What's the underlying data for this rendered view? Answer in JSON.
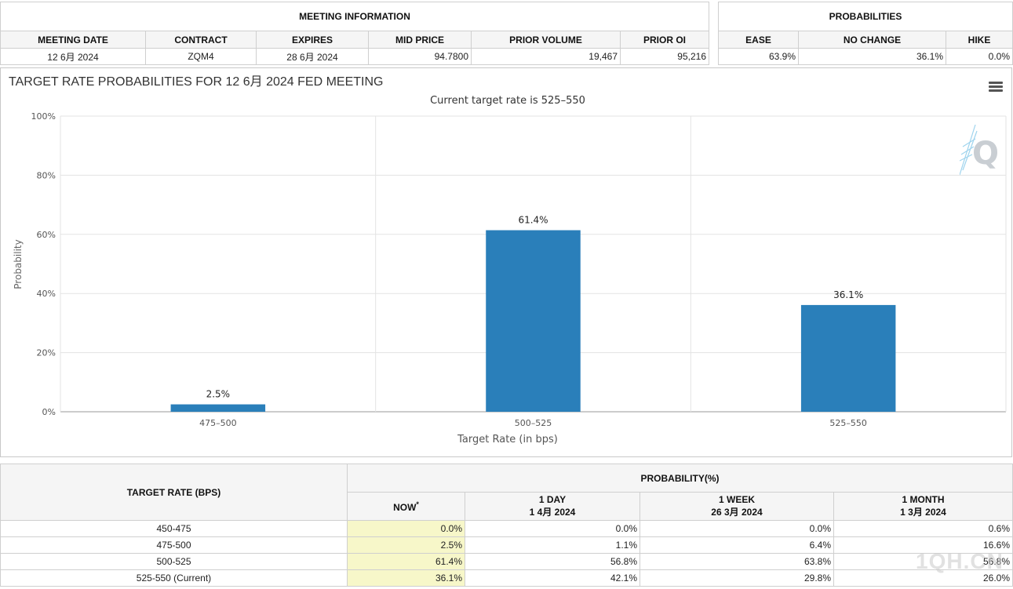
{
  "meeting_info": {
    "title": "MEETING INFORMATION",
    "headers": [
      "MEETING DATE",
      "CONTRACT",
      "EXPIRES",
      "MID PRICE",
      "PRIOR VOLUME",
      "PRIOR OI"
    ],
    "values": [
      "12 6月 2024",
      "ZQM4",
      "28 6月 2024",
      "94.7800",
      "19,467",
      "95,216"
    ]
  },
  "probabilities": {
    "title": "PROBABILITIES",
    "headers": [
      "EASE",
      "NO CHANGE",
      "HIKE"
    ],
    "values": [
      "63.9%",
      "36.1%",
      "0.0%"
    ]
  },
  "chart_data": {
    "type": "bar",
    "title": "TARGET RATE PROBABILITIES FOR 12 6月 2024 FED MEETING",
    "subtitle": "Current target rate is 525–550",
    "xlabel": "Target Rate (in bps)",
    "ylabel": "Probability",
    "categories": [
      "475–500",
      "500–525",
      "525–550"
    ],
    "values": [
      2.5,
      61.4,
      36.1
    ],
    "data_labels": [
      "2.5%",
      "61.4%",
      "36.1%"
    ],
    "yticks": [
      "0%",
      "20%",
      "40%",
      "60%",
      "80%",
      "100%"
    ],
    "ylim": [
      0,
      100
    ],
    "bar_color": "#2a7fba",
    "grid": true
  },
  "logo_text": "Q",
  "watermark": "1QH.CN",
  "rate_table": {
    "target_header": "TARGET RATE (BPS)",
    "prob_header": "PROBABILITY(%)",
    "cols": [
      {
        "line1": "NOW",
        "line2": "",
        "sup": "*"
      },
      {
        "line1": "1 DAY",
        "line2": "1 4月 2024",
        "sup": ""
      },
      {
        "line1": "1 WEEK",
        "line2": "26 3月 2024",
        "sup": ""
      },
      {
        "line1": "1 MONTH",
        "line2": "1 3月 2024",
        "sup": ""
      }
    ],
    "rows": [
      {
        "rate": "450-475",
        "vals": [
          "0.0%",
          "0.0%",
          "0.0%",
          "0.6%"
        ]
      },
      {
        "rate": "475-500",
        "vals": [
          "2.5%",
          "1.1%",
          "6.4%",
          "16.6%"
        ]
      },
      {
        "rate": "500-525",
        "vals": [
          "61.4%",
          "56.8%",
          "63.8%",
          "56.8%"
        ]
      },
      {
        "rate": "525-550 (Current)",
        "vals": [
          "36.1%",
          "42.1%",
          "29.8%",
          "26.0%"
        ]
      }
    ]
  },
  "colors": {
    "now_highlight": "#f7f7c9",
    "header_bg": "#f5f5f5",
    "border": "#cfcfcf"
  }
}
